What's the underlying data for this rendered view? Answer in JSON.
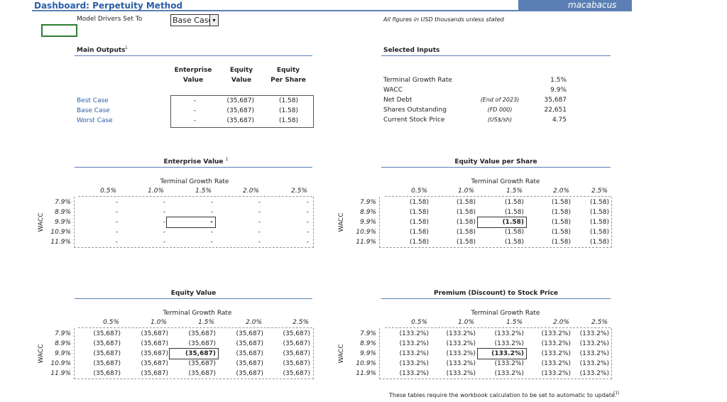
{
  "header": {
    "title": "Dashboard: Perpetuity Method",
    "logo": "macabacus"
  },
  "drivers": {
    "label": "Model Drivers Set To",
    "value": "Base Case"
  },
  "note": "All figures in USD thousands unless stated",
  "main_outputs": {
    "title": "Main Outputs",
    "footnote": "1",
    "columns": [
      [
        "Enterprise",
        "Value"
      ],
      [
        "Equity",
        "Value"
      ],
      [
        "Equity",
        "Per Share"
      ]
    ],
    "rows": [
      {
        "label": "Best Case",
        "values": [
          "-",
          "(35,687)",
          "(1.58)"
        ]
      },
      {
        "label": "Base Case",
        "values": [
          "-",
          "(35,687)",
          "(1.58)"
        ]
      },
      {
        "label": "Worst Case",
        "values": [
          "-",
          "(35,687)",
          "(1.58)"
        ]
      }
    ]
  },
  "selected_inputs": {
    "title": "Selected Inputs",
    "rows": [
      {
        "label": "Terminal Growth Rate",
        "value": "1.5%"
      },
      {
        "label": "WACC",
        "value": "9.9%"
      },
      {
        "label": "Net Debt",
        "note": "(End of 2023)",
        "value": "35,687"
      },
      {
        "label": "Shares Outstanding",
        "note": "(FD 000)",
        "value": "22,651"
      },
      {
        "label": "Current Stock Price",
        "note": "(US$/sh)",
        "value": "4.75"
      }
    ]
  },
  "tables": [
    {
      "title": "Enterprise Value",
      "footnote": "1",
      "col_header": "Terminal Growth Rate",
      "row_header": "WACC",
      "columns": [
        "0.5%",
        "1.0%",
        "1.5%",
        "2.0%",
        "2.5%"
      ],
      "rows": [
        "7.9%",
        "8.9%",
        "9.9%",
        "10.9%",
        "11.9%"
      ],
      "cells": [
        [
          "-",
          "-",
          "-",
          "-",
          "-"
        ],
        [
          "-",
          "-",
          "-",
          "-",
          "-"
        ],
        [
          "-",
          "-",
          "-",
          "-",
          "-"
        ],
        [
          "-",
          "-",
          "-",
          "-",
          "-"
        ],
        [
          "-",
          "-",
          "-",
          "-",
          "-"
        ]
      ]
    },
    {
      "title": "Equity Value per Share",
      "col_header": "Terminal Growth Rate",
      "row_header": "WACC",
      "columns": [
        "0.5%",
        "1.0%",
        "1.5%",
        "2.0%",
        "2.5%"
      ],
      "rows": [
        "7.9%",
        "8.9%",
        "9.9%",
        "10.9%",
        "11.9%"
      ],
      "cells": [
        [
          "(1.58)",
          "(1.58)",
          "(1.58)",
          "(1.58)",
          "(1.58)"
        ],
        [
          "(1.58)",
          "(1.58)",
          "(1.58)",
          "(1.58)",
          "(1.58)"
        ],
        [
          "(1.58)",
          "(1.58)",
          "(1.58)",
          "(1.58)",
          "(1.58)"
        ],
        [
          "(1.58)",
          "(1.58)",
          "(1.58)",
          "(1.58)",
          "(1.58)"
        ],
        [
          "(1.58)",
          "(1.58)",
          "(1.58)",
          "(1.58)",
          "(1.58)"
        ]
      ]
    },
    {
      "title": "Equity Value",
      "col_header": "Terminal Growth Rate",
      "row_header": "WACC",
      "columns": [
        "0.5%",
        "1.0%",
        "1.5%",
        "2.0%",
        "2.5%"
      ],
      "rows": [
        "7.9%",
        "8.9%",
        "9.9%",
        "10.9%",
        "11.9%"
      ],
      "cells": [
        [
          "(35,687)",
          "(35,687)",
          "(35,687)",
          "(35,687)",
          "(35,687)"
        ],
        [
          "(35,687)",
          "(35,687)",
          "(35,687)",
          "(35,687)",
          "(35,687)"
        ],
        [
          "(35,687)",
          "(35,687)",
          "(35,687)",
          "(35,687)",
          "(35,687)"
        ],
        [
          "(35,687)",
          "(35,687)",
          "(35,687)",
          "(35,687)",
          "(35,687)"
        ],
        [
          "(35,687)",
          "(35,687)",
          "(35,687)",
          "(35,687)",
          "(35,687)"
        ]
      ]
    },
    {
      "title": "Premium (Discount) to Stock Price",
      "col_header": "Terminal Growth Rate",
      "row_header": "WACC",
      "columns": [
        "0.5%",
        "1.0%",
        "1.5%",
        "2.0%",
        "2.5%"
      ],
      "rows": [
        "7.9%",
        "8.9%",
        "9.9%",
        "10.9%",
        "11.9%"
      ],
      "cells": [
        [
          "(133.2%)",
          "(133.2%)",
          "(133.2%)",
          "(133.2%)",
          "(133.2%)"
        ],
        [
          "(133.2%)",
          "(133.2%)",
          "(133.2%)",
          "(133.2%)",
          "(133.2%)"
        ],
        [
          "(133.2%)",
          "(133.2%)",
          "(133.2%)",
          "(133.2%)",
          "(133.2%)"
        ],
        [
          "(133.2%)",
          "(133.2%)",
          "(133.2%)",
          "(133.2%)",
          "(133.2%)"
        ],
        [
          "(133.2%)",
          "(133.2%)",
          "(133.2%)",
          "(133.2%)",
          "(133.2%)"
        ]
      ]
    }
  ],
  "footer": {
    "text": "These tables require the workbook calculation to be set to automatic to update.",
    "footnote": "(1)"
  }
}
